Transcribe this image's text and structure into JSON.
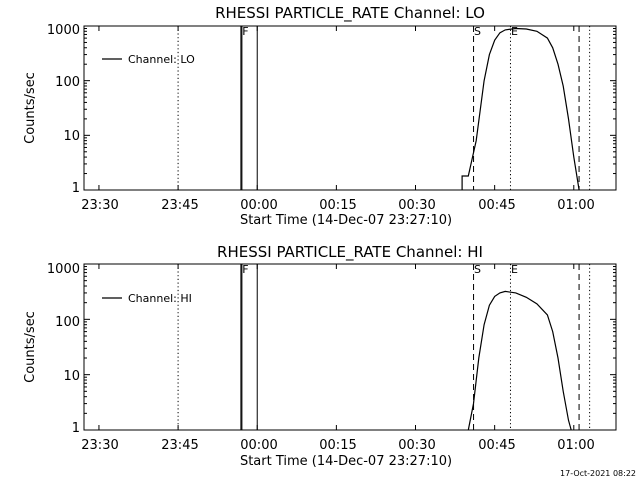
{
  "chart_data": [
    {
      "type": "line",
      "title": "RHESSI PARTICLE_RATE Channel: LO",
      "xlabel": "Start Time (14-Dec-07 23:27:10)",
      "ylabel": "Counts/sec",
      "y_scale": "log",
      "xlim": [
        "23:27:10",
        "01:08:00"
      ],
      "ylim": [
        1,
        1000
      ],
      "x_ticks": [
        "23:30",
        "23:45",
        "00:00",
        "00:15",
        "00:30",
        "00:45",
        "01:00"
      ],
      "y_ticks": [
        "1",
        "10",
        "100",
        "1000"
      ],
      "legend": {
        "entry": "Channel: LO",
        "placement": "top-left"
      },
      "annotations": [
        {
          "text": "F",
          "x": "23:57:00",
          "style": "solid",
          "span": [
            -0.5,
            0.5
          ]
        },
        {
          "text": "",
          "x": "00:00:00",
          "style": "solid"
        },
        {
          "text": "S",
          "x": "00:41:00",
          "style": "dashed"
        },
        {
          "text": "E",
          "x": "00:48:00",
          "style": "dotted"
        },
        {
          "text": "",
          "x": "01:01:00",
          "style": "dashed"
        },
        {
          "text": "",
          "x": "01:03:00",
          "style": "dotted"
        },
        {
          "text": "",
          "x": "23:45:00",
          "style": "dotted"
        }
      ],
      "series": [
        {
          "name": "Channel: LO",
          "points": [
            [
              "00:38:50",
              1
            ],
            [
              "00:38:50",
              1.8
            ],
            [
              "00:40:00",
              1.8
            ],
            [
              "00:41:30",
              8
            ],
            [
              "00:43:00",
              100
            ],
            [
              "00:44:00",
              300
            ],
            [
              "00:45:00",
              550
            ],
            [
              "00:46:00",
              750
            ],
            [
              "00:47:00",
              850
            ],
            [
              "00:49:00",
              900
            ],
            [
              "00:51:00",
              880
            ],
            [
              "00:53:00",
              800
            ],
            [
              "00:55:00",
              600
            ],
            [
              "00:56:00",
              400
            ],
            [
              "00:57:00",
              200
            ],
            [
              "00:58:00",
              80
            ],
            [
              "00:59:00",
              20
            ],
            [
              "01:00:00",
              4
            ],
            [
              "01:01:00",
              1
            ]
          ]
        }
      ]
    },
    {
      "type": "line",
      "title": "RHESSI PARTICLE_RATE Channel: HI",
      "xlabel": "Start Time (14-Dec-07 23:27:10)",
      "ylabel": "Counts/sec",
      "y_scale": "log",
      "xlim": [
        "23:27:10",
        "01:08:00"
      ],
      "ylim": [
        1,
        1000
      ],
      "x_ticks": [
        "23:30",
        "23:45",
        "00:00",
        "00:15",
        "00:30",
        "00:45",
        "01:00"
      ],
      "y_ticks": [
        "1",
        "10",
        "100",
        "1000"
      ],
      "legend": {
        "entry": "Channel: HI",
        "placement": "top-left"
      },
      "annotations": [
        {
          "text": "F",
          "x": "23:57:00",
          "style": "solid",
          "span": [
            -0.5,
            0.5
          ]
        },
        {
          "text": "",
          "x": "00:00:00",
          "style": "solid"
        },
        {
          "text": "S",
          "x": "00:41:00",
          "style": "dashed"
        },
        {
          "text": "E",
          "x": "00:48:00",
          "style": "dotted"
        },
        {
          "text": "",
          "x": "01:01:00",
          "style": "dashed"
        },
        {
          "text": "",
          "x": "01:03:00",
          "style": "dotted"
        },
        {
          "text": "",
          "x": "23:45:00",
          "style": "dotted"
        }
      ],
      "series": [
        {
          "name": "Channel: HI",
          "points": [
            [
              "00:40:00",
              1
            ],
            [
              "00:41:00",
              3
            ],
            [
              "00:42:00",
              20
            ],
            [
              "00:43:00",
              80
            ],
            [
              "00:44:00",
              180
            ],
            [
              "00:45:00",
              260
            ],
            [
              "00:46:00",
              300
            ],
            [
              "00:47:00",
              320
            ],
            [
              "00:49:00",
              300
            ],
            [
              "00:51:00",
              250
            ],
            [
              "00:53:00",
              190
            ],
            [
              "00:55:00",
              120
            ],
            [
              "00:56:00",
              60
            ],
            [
              "00:57:00",
              20
            ],
            [
              "00:58:00",
              5
            ],
            [
              "00:59:00",
              1.5
            ],
            [
              "00:59:30",
              1
            ]
          ]
        }
      ]
    }
  ],
  "footer": {
    "timestamp": "17-Oct-2021 08:22"
  }
}
